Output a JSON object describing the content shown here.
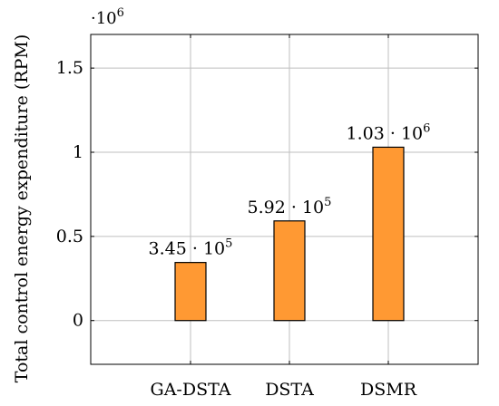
{
  "chart_data": {
    "type": "bar",
    "categories": [
      "GA-DSTA",
      "DSTA",
      "DSMR"
    ],
    "values": [
      345000,
      592000,
      1030000
    ],
    "data_labels": [
      {
        "mantissa": "3.45",
        "exponent": "5"
      },
      {
        "mantissa": "5.92",
        "exponent": "5"
      },
      {
        "mantissa": "1.03",
        "exponent": "6"
      }
    ],
    "ylabel": "Total control energy expenditure (RPM)",
    "xlabel": "",
    "ylim": [
      -260000,
      1700000
    ],
    "yticks": [
      0,
      500000,
      1000000,
      1500000
    ],
    "ytick_labels": [
      "0",
      "0.5",
      "1",
      "1.5"
    ],
    "y_multiplier": {
      "base": "10",
      "exponent": "6"
    },
    "grid": true,
    "bar_color": "#ff9933",
    "bar_edge_color": "#000000",
    "grid_color": "#bfbfbf"
  }
}
